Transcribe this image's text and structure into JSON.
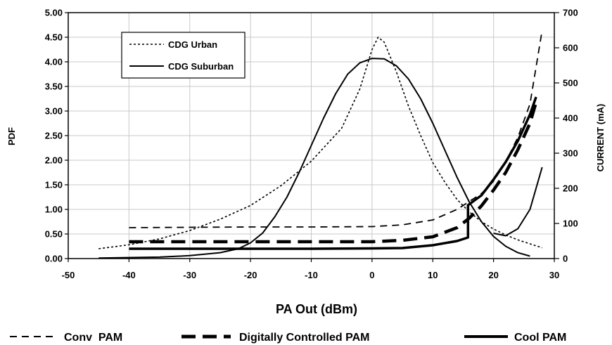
{
  "chart_data": {
    "type": "line",
    "title": "",
    "xlabel": "PA Out (dBm)",
    "ylabel": "PDF",
    "y2label": "CURRENT (mA)",
    "xlim": [
      -50,
      30
    ],
    "ylim": [
      0,
      5
    ],
    "y2lim": [
      0,
      700
    ],
    "grid": true,
    "xticks": [
      "-50",
      "-40",
      "-30",
      "-20",
      "-10",
      "0",
      "10",
      "20",
      "30"
    ],
    "yticks": [
      "0.00",
      "0.50",
      "1.00",
      "1.50",
      "2.00",
      "2.50",
      "3.00",
      "3.50",
      "4.00",
      "4.50",
      "5.00"
    ],
    "y2ticks": [
      "0",
      "100",
      "200",
      "300",
      "400",
      "500",
      "600",
      "700"
    ],
    "legend_inset": {
      "placement": "top-left",
      "entries": [
        {
          "name": "CDG Urban",
          "style": "dotted"
        },
        {
          "name": "CDG Suburban",
          "style": "solid"
        }
      ]
    },
    "legend_bottom": {
      "placement": "bottom",
      "entries": [
        {
          "name": "Conv  PAM",
          "style": "dashed"
        },
        {
          "name": "Digitally Controlled PAM",
          "style": "thick-dashed"
        },
        {
          "name": "Cool PAM",
          "style": "thick-solid"
        }
      ]
    },
    "series": [
      {
        "name": "CDG Urban",
        "axis": "left",
        "style": "dotted",
        "x": [
          -45,
          -40,
          -35,
          -30,
          -25,
          -20,
          -15,
          -10,
          -5,
          -2,
          0,
          1,
          2,
          4,
          6,
          8,
          10,
          12,
          14,
          16,
          18,
          20,
          22,
          24,
          26,
          28
        ],
        "y": [
          0.2,
          0.28,
          0.4,
          0.57,
          0.8,
          1.08,
          1.48,
          1.98,
          2.65,
          3.45,
          4.25,
          4.5,
          4.4,
          3.8,
          3.1,
          2.5,
          1.95,
          1.55,
          1.2,
          0.95,
          0.75,
          0.6,
          0.48,
          0.38,
          0.3,
          0.22
        ]
      },
      {
        "name": "CDG Suburban",
        "axis": "left",
        "style": "solid",
        "x": [
          -45,
          -35,
          -30,
          -25,
          -22,
          -20,
          -18,
          -16,
          -14,
          -12,
          -10,
          -8,
          -6,
          -4,
          -2,
          0,
          2,
          4,
          6,
          8,
          10,
          12,
          14,
          16,
          18,
          20,
          22,
          24,
          26
        ],
        "y": [
          0.01,
          0.03,
          0.06,
          0.12,
          0.2,
          0.32,
          0.52,
          0.85,
          1.25,
          1.75,
          2.3,
          2.85,
          3.35,
          3.75,
          3.98,
          4.07,
          4.06,
          3.92,
          3.65,
          3.25,
          2.75,
          2.2,
          1.65,
          1.15,
          0.75,
          0.45,
          0.25,
          0.12,
          0.05
        ]
      },
      {
        "name": "Conv  PAM",
        "axis": "right",
        "style": "dashed",
        "x": [
          -40,
          -30,
          -20,
          -10,
          0,
          5,
          10,
          14,
          18,
          20,
          22,
          24,
          26,
          28
        ],
        "y": [
          88,
          89,
          90,
          90,
          91,
          96,
          110,
          140,
          185,
          220,
          275,
          345,
          440,
          650
        ]
      },
      {
        "name": "Digitally Controlled PAM",
        "axis": "right",
        "style": "thick-dashed",
        "x": [
          -40,
          -30,
          -20,
          -10,
          0,
          5,
          10,
          14,
          16,
          18,
          20,
          22,
          24,
          26,
          27
        ],
        "y": [
          48,
          48,
          48,
          48,
          48,
          52,
          62,
          88,
          115,
          150,
          195,
          245,
          310,
          385,
          445
        ]
      },
      {
        "name": "Cool PAM",
        "axis": "right",
        "style": "thick-solid",
        "x": [
          -40,
          -30,
          -20,
          -10,
          0,
          5,
          10,
          14,
          15.8,
          15.8,
          18,
          20,
          22,
          24,
          26,
          27
        ],
        "y": [
          28,
          28,
          28,
          28,
          29,
          30,
          38,
          50,
          60,
          152,
          180,
          225,
          275,
          335,
          410,
          460
        ]
      },
      {
        "name": "",
        "axis": "right",
        "style": "solid",
        "x": [
          20,
          22,
          24,
          26,
          28
        ],
        "y": [
          72,
          65,
          85,
          140,
          260
        ]
      }
    ]
  }
}
